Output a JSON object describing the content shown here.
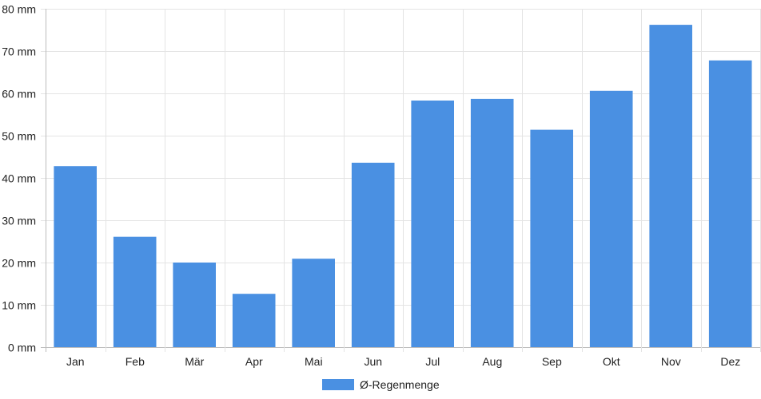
{
  "chart_data": {
    "type": "bar",
    "categories": [
      "Jan",
      "Feb",
      "Mär",
      "Apr",
      "Mai",
      "Jun",
      "Jul",
      "Aug",
      "Sep",
      "Okt",
      "Nov",
      "Dez"
    ],
    "series": [
      {
        "name": "Ø-Regenmenge",
        "values": [
          42.8,
          26.1,
          20.0,
          12.6,
          20.9,
          43.6,
          58.3,
          58.7,
          51.4,
          60.6,
          76.2,
          67.8
        ],
        "color": "#4a90e2"
      }
    ],
    "ylim": [
      0,
      80
    ],
    "yticks": [
      0,
      10,
      20,
      30,
      40,
      50,
      60,
      70,
      80
    ],
    "yunit": "mm",
    "grid": true,
    "legend": "bottom-center"
  }
}
